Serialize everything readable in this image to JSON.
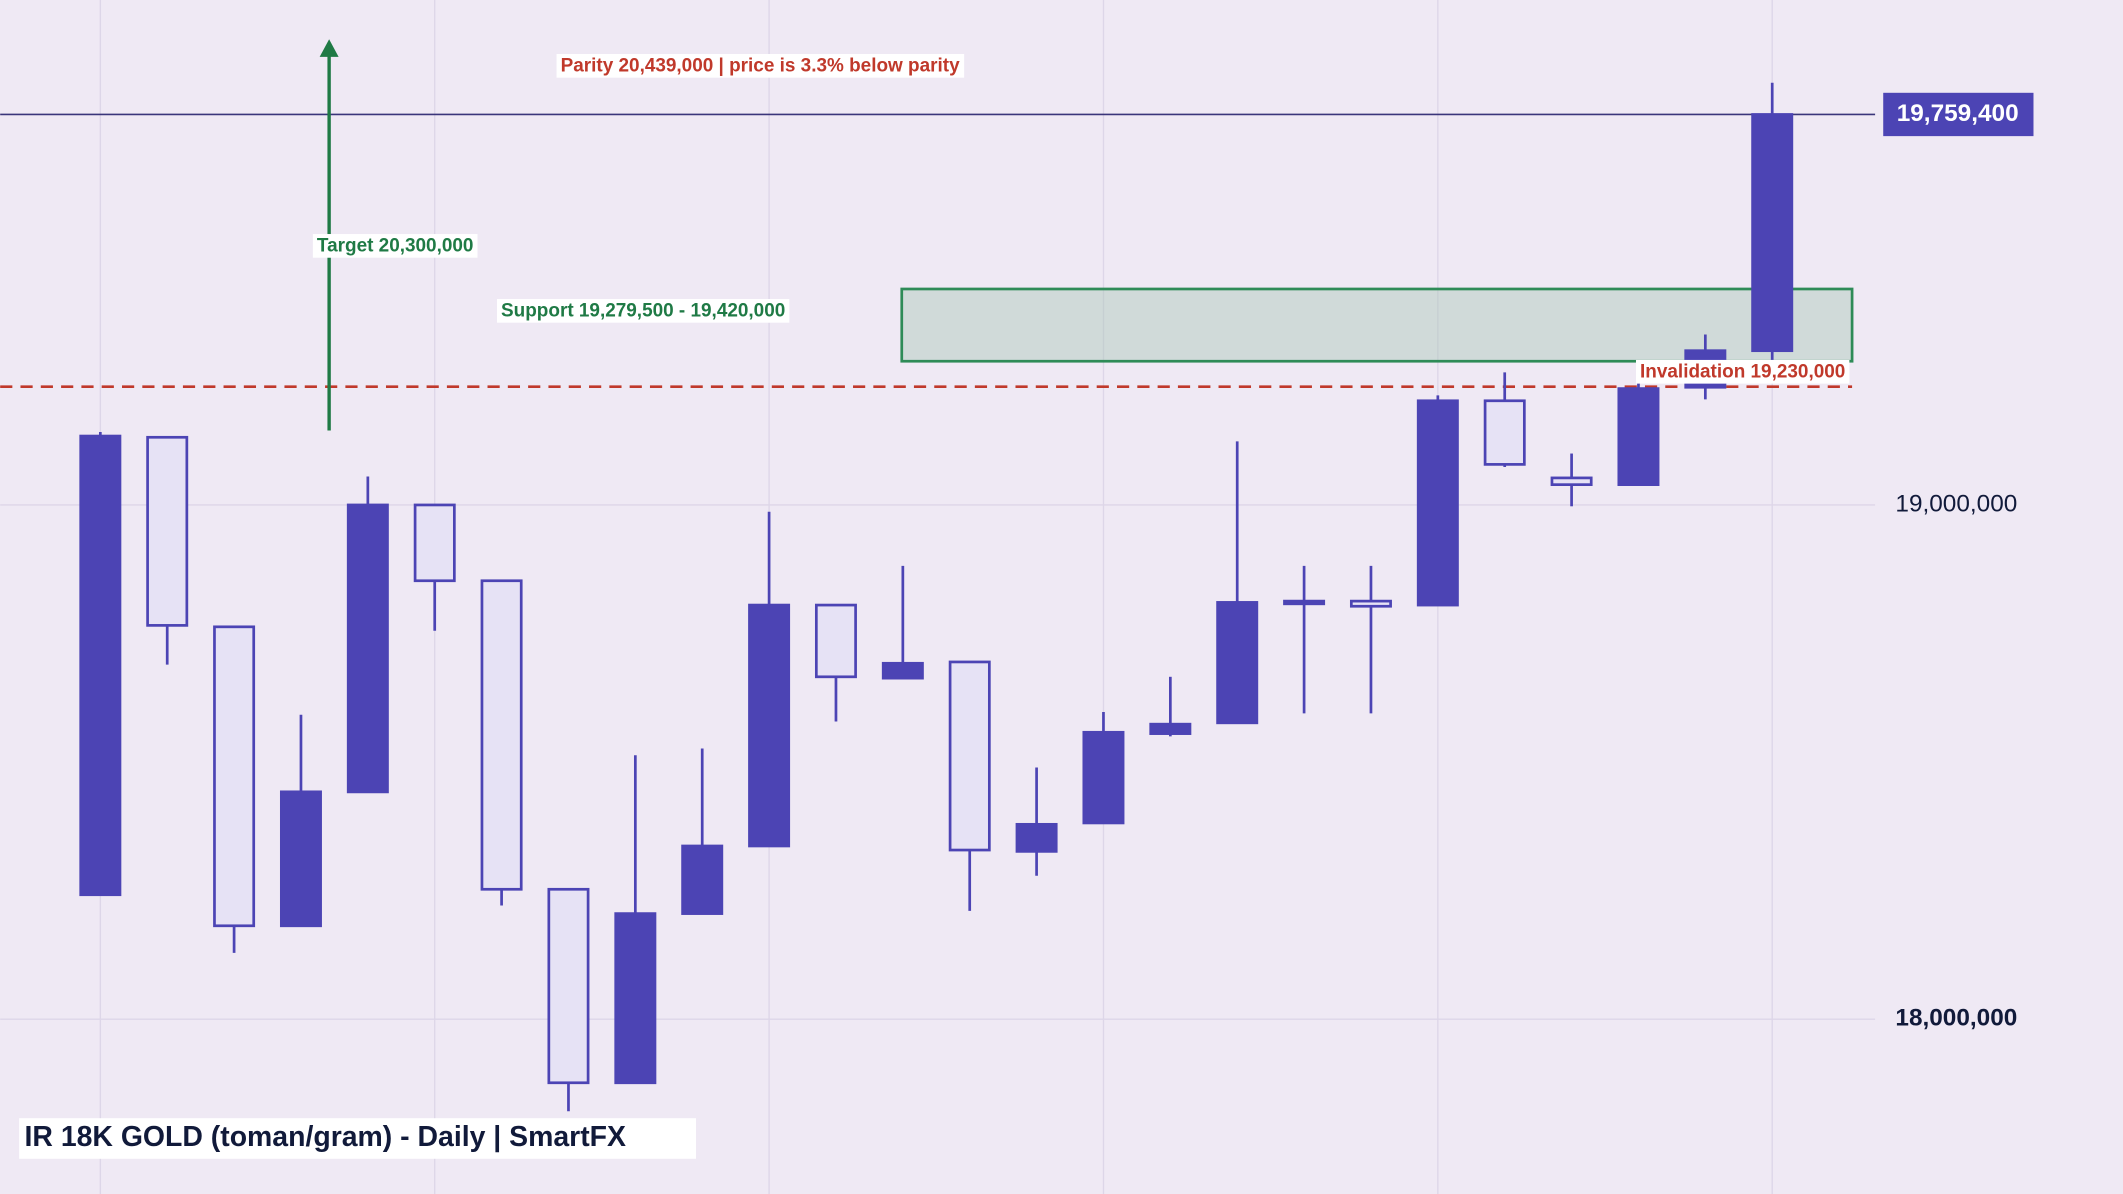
{
  "chart_data": {
    "type": "candlestick",
    "title": "IR 18K GOLD (toman/gram)  -  Daily  |  SmartFX",
    "open": [
      18242000,
      19131600,
      18763000,
      18181600,
      18442000,
      19000000,
      18852600,
      18252600,
      17876300,
      18205300,
      18336800,
      18805300,
      18663200,
      18694700,
      18326300,
      18381600,
      18555300,
      18576300,
      18808000,
      18813000,
      18805300,
      19202600,
      19052600,
      19039500,
      19228900,
      19300000
    ],
    "high": [
      19142000,
      19131600,
      18763000,
      18592100,
      19055300,
      19000000,
      18852600,
      18252600,
      18513200,
      18526300,
      18986800,
      18805300,
      18881600,
      18694700,
      18489500,
      18597400,
      18665800,
      19123700,
      18881600,
      18881600,
      19213200,
      19257900,
      19100000,
      19276300,
      19331600,
      19821000
    ],
    "low": [
      18242000,
      18689500,
      18128900,
      18181600,
      18442000,
      18755300,
      18221000,
      17821000,
      17876300,
      18205300,
      18336800,
      18578900,
      18663200,
      18210500,
      18278900,
      18381600,
      18550000,
      18576300,
      18594700,
      18594700,
      18805300,
      19073700,
      18997400,
      19039500,
      19205300,
      19279000
    ],
    "close": [
      19134000,
      18765800,
      18181600,
      18442100,
      19000000,
      18852600,
      18252600,
      17876300,
      18205300,
      18336800,
      18805300,
      18665800,
      18692100,
      18328900,
      18378900,
      18557900,
      18573700,
      18810500,
      18813000,
      18803000,
      19202600,
      19078900,
      19039500,
      19226300,
      19300000,
      19759400
    ],
    "up_color": "#4c44b4",
    "down_color": "#e6e2f5",
    "edge_color": "#4c44b4",
    "ylim": [
      17660000,
      19982000
    ],
    "yticks": [
      {
        "value": 19000000,
        "label": "19,000,000"
      },
      {
        "value": 18000000,
        "label": "18,000,000"
      }
    ],
    "grid": true,
    "last_price": {
      "value": 19759400,
      "label": "19,759,400"
    },
    "support": {
      "label": "Support  19,279,500 - 19,420,000",
      "low": 19279500,
      "high": 19420000
    },
    "invalidation": {
      "label": "Invalidation  19,230,000",
      "value": 19230000
    },
    "target": {
      "label": "Target  20,300,000"
    },
    "parity": {
      "label": "Parity  20,439,000  |  price is 3.3% below parity"
    }
  }
}
